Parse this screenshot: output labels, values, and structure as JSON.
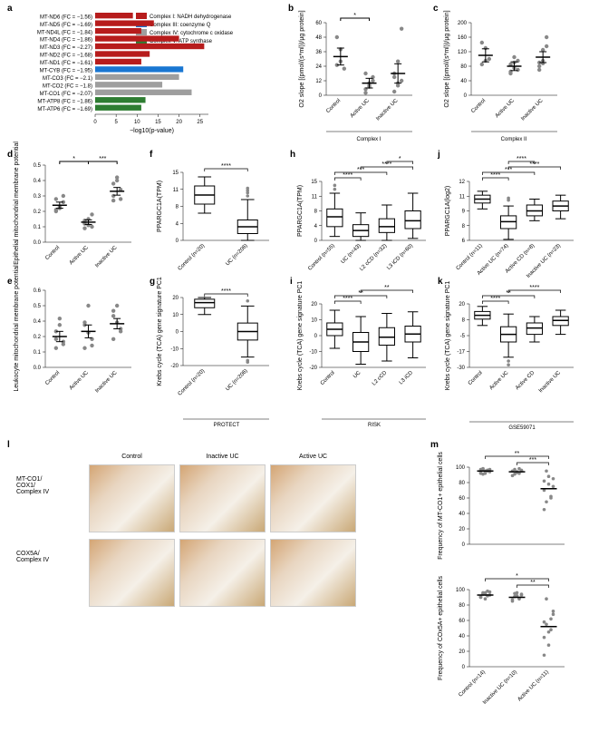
{
  "panelA": {
    "colors": {
      "I": "#b71c1c",
      "III": "#1976d2",
      "IV": "#9e9e9e",
      "V": "#2e7d32"
    },
    "legend": [
      {
        "label": "Complex I: NADH dehydrogenase",
        "color": "#b71c1c"
      },
      {
        "label": "Complex III: coenzyme Q",
        "color": "#1976d2"
      },
      {
        "label": "Complex IV: cytochrome c oxidase",
        "color": "#9e9e9e"
      },
      {
        "label": "Complex V: ATP synthase",
        "color": "#2e7d32"
      }
    ],
    "xlabel": "−log10(p-value)",
    "xmax": 27,
    "items": [
      {
        "name": "MT-ND6 (FC = −1.56)",
        "val": 9,
        "c": "I"
      },
      {
        "name": "MT-ND5 (FC = −1.69)",
        "val": 14,
        "c": "I"
      },
      {
        "name": "MT-ND4L (FC = −1.84)",
        "val": 11,
        "c": "I"
      },
      {
        "name": "MT-ND4 (FC = −1.86)",
        "val": 20,
        "c": "I"
      },
      {
        "name": "MT-ND3 (FC = −2.27)",
        "val": 26,
        "c": "I"
      },
      {
        "name": "MT-ND2 (FC = −1.68)",
        "val": 13,
        "c": "I"
      },
      {
        "name": "MT-ND1 (FC = −1.61)",
        "val": 11,
        "c": "I"
      },
      {
        "name": "MT-CYB (FC = −1.95)",
        "val": 21,
        "c": "III"
      },
      {
        "name": "MT-CO3 (FC = −2.1)",
        "val": 20,
        "c": "IV"
      },
      {
        "name": "MT-CO2 (FC = −1.8)",
        "val": 16,
        "c": "IV"
      },
      {
        "name": "MT-CO1 (FC = −2.07)",
        "val": 23,
        "c": "IV"
      },
      {
        "name": "MT-ATP8 (FC = −1.86)",
        "val": 12,
        "c": "V"
      },
      {
        "name": "MT-ATP6 (FC = −1.69)",
        "val": 11,
        "c": "V"
      }
    ]
  },
  "panelB": {
    "ylabel": "O2 slope [(pmol/(s*ml))/µg protein]",
    "ymax": 60,
    "title": "Complex I",
    "sig": "*",
    "groups": [
      {
        "label": "Control",
        "mean": 32,
        "sem": 7,
        "pts": [
          25,
          28,
          22,
          48,
          38
        ]
      },
      {
        "label": "Active UC",
        "mean": 10,
        "sem": 4,
        "pts": [
          5,
          8,
          15,
          2,
          7,
          12,
          18,
          10
        ]
      },
      {
        "label": "Inactive UC",
        "mean": 18,
        "sem": 8,
        "pts": [
          3,
          8,
          12,
          18,
          28,
          55,
          15,
          10
        ]
      }
    ]
  },
  "panelC": {
    "ylabel": "O2 slope [(pmol/(s*ml))/µg protein]",
    "ymax": 200,
    "title": "Complex II",
    "groups": [
      {
        "label": "Control",
        "mean": 110,
        "sem": 18,
        "pts": [
          145,
          130,
          100,
          85,
          95
        ]
      },
      {
        "label": "Active UC",
        "mean": 80,
        "sem": 12,
        "pts": [
          65,
          75,
          95,
          60,
          105,
          70,
          85,
          90
        ]
      },
      {
        "label": "Inactive UC",
        "mean": 105,
        "sem": 15,
        "pts": [
          70,
          95,
          135,
          80,
          125,
          160,
          90,
          88
        ]
      }
    ]
  },
  "panelD": {
    "ylabel": "Epithelial mitochondrial membrane potential",
    "ymax": 0.5,
    "sig": [
      "*",
      "***"
    ],
    "groups": [
      {
        "label": "Control",
        "mean": 0.24,
        "sem": 0.02,
        "pts": [
          0.21,
          0.23,
          0.26,
          0.28,
          0.22,
          0.3,
          0.2
        ]
      },
      {
        "label": "Active UC",
        "mean": 0.13,
        "sem": 0.015,
        "pts": [
          0.09,
          0.11,
          0.18,
          0.12,
          0.15,
          0.1,
          0.14
        ]
      },
      {
        "label": "Inactive UC",
        "mean": 0.33,
        "sem": 0.025,
        "pts": [
          0.27,
          0.42,
          0.28,
          0.3,
          0.4,
          0.34,
          0.38
        ]
      }
    ]
  },
  "panelE": {
    "ylabel": "Leukocyte mitochondrial membrane potential",
    "ymax": 0.6,
    "groups": [
      {
        "label": "Control",
        "mean": 0.24,
        "sem": 0.04,
        "pts": [
          0.15,
          0.33,
          0.2,
          0.28,
          0.38,
          0.18,
          0.22
        ]
      },
      {
        "label": "Active UC",
        "mean": 0.28,
        "sem": 0.05,
        "pts": [
          0.15,
          0.48,
          0.17,
          0.33,
          0.27,
          0.22,
          0.35
        ]
      },
      {
        "label": "Inactive UC",
        "mean": 0.34,
        "sem": 0.04,
        "pts": [
          0.22,
          0.48,
          0.28,
          0.4,
          0.35,
          0.3,
          0.44
        ]
      }
    ]
  },
  "panelF": {
    "ylabel": "PPARGC1A(TPM)",
    "title": "PROTECT",
    "ymin": 0,
    "ymax": 15,
    "sig": "****",
    "groups": [
      {
        "label": "Control (n=20)",
        "q1": 8,
        "med": 10,
        "q3": 12,
        "lo": 6,
        "hi": 14
      },
      {
        "label": "UC (n=206)",
        "q1": 1.5,
        "med": 3,
        "q3": 4.5,
        "lo": 0,
        "hi": 9,
        "out": [
          9.8,
          10.5,
          11,
          11.5
        ]
      }
    ]
  },
  "panelG": {
    "ylabel": "Krebs cycle (TCA) gene signature PC1",
    "ymin": -20,
    "ymax": 20,
    "sig": "****",
    "groups": [
      {
        "label": "Control (n=20)",
        "q1": 14,
        "med": 17,
        "q3": 19,
        "lo": 10,
        "hi": 20
      },
      {
        "label": "UC (n=206)",
        "q1": -5,
        "med": 0,
        "q3": 5,
        "lo": -15,
        "hi": 15,
        "out": [
          -18,
          -17,
          18
        ]
      }
    ]
  },
  "panelH": {
    "ylabel": "PPARGC1A(TPM)",
    "title": "RISK",
    "ymin": 0,
    "ymax": 15,
    "sigs": [
      [
        "Control",
        "UC",
        "****"
      ],
      [
        "Control",
        "L2 cCD",
        "***"
      ],
      [
        "UC",
        "L3 iCD",
        "****"
      ],
      [
        "L2 cCD",
        "L3 iCD",
        "*"
      ]
    ],
    "groups": [
      {
        "label": "Control (n=55)",
        "q1": 3.5,
        "med": 6,
        "q3": 8,
        "lo": 1,
        "hi": 12,
        "out": [
          13,
          14
        ]
      },
      {
        "label": "UC (n=43)",
        "q1": 1,
        "med": 2.5,
        "q3": 4,
        "lo": 0,
        "hi": 7
      },
      {
        "label": "L2 cCD (n=32)",
        "q1": 2,
        "med": 3.5,
        "q3": 5.5,
        "lo": 0,
        "hi": 9
      },
      {
        "label": "L3 iCD (n=60)",
        "q1": 3,
        "med": 5,
        "q3": 7.5,
        "lo": 0.5,
        "hi": 12
      }
    ]
  },
  "panelI": {
    "ylabel": "Krebs cycle (TCA) gene signature PC1",
    "ymin": -20,
    "ymax": 20,
    "sigs": [
      [
        "Control",
        "UC",
        "****"
      ],
      [
        "Control",
        "L2 cCD",
        "**"
      ],
      [
        "UC",
        "L3 iCD",
        "**"
      ]
    ],
    "groups": [
      {
        "label": "Control",
        "q1": 0,
        "med": 4,
        "q3": 8,
        "lo": -8,
        "hi": 16
      },
      {
        "label": "UC",
        "q1": -10,
        "med": -4,
        "q3": 2,
        "lo": -18,
        "hi": 12
      },
      {
        "label": "L2 cCD",
        "q1": -6,
        "med": -1,
        "q3": 5,
        "lo": -16,
        "hi": 14
      },
      {
        "label": "L3 iCD",
        "q1": -4,
        "med": 1,
        "q3": 6,
        "lo": -14,
        "hi": 15
      }
    ]
  },
  "panelJ": {
    "ylabel": "PPARGC1A(log2)",
    "title": "GSE59071",
    "ymin": 6,
    "ymax": 12,
    "sigs": [
      [
        "Control",
        "Active UC",
        "****"
      ],
      [
        "Control",
        "Active CD",
        "***"
      ],
      [
        "Active UC",
        "Inactive UC",
        "****"
      ],
      [
        "Active UC",
        "Active CD",
        "****"
      ]
    ],
    "groups": [
      {
        "label": "Control (n=11)",
        "q1": 9.8,
        "med": 10.2,
        "q3": 10.6,
        "lo": 9.2,
        "hi": 11
      },
      {
        "label": "Active UC (n=74)",
        "q1": 7.2,
        "med": 7.9,
        "q3": 8.5,
        "lo": 6.1,
        "hi": 9.5,
        "out": [
          10.1,
          10.3
        ]
      },
      {
        "label": "Active CD (n=8)",
        "q1": 8.5,
        "med": 9,
        "q3": 9.6,
        "lo": 8,
        "hi": 10.2
      },
      {
        "label": "Inactive UC (n=23)",
        "q1": 9,
        "med": 9.5,
        "q3": 10,
        "lo": 8.2,
        "hi": 10.6
      }
    ]
  },
  "panelK": {
    "ylabel": "Krebs cycle (TCA) gene signature PC1",
    "ymin": -30,
    "ymax": 20,
    "sigs": [
      [
        "Control",
        "Active UC",
        "****"
      ],
      [
        "Control",
        "Active CD",
        "**"
      ],
      [
        "Active UC",
        "Inactive UC",
        "****"
      ]
    ],
    "groups": [
      {
        "label": "Control",
        "q1": 8,
        "med": 11,
        "q3": 14,
        "lo": 3,
        "hi": 18
      },
      {
        "label": "Active UC",
        "q1": -10,
        "med": -4,
        "q3": 2,
        "lo": -22,
        "hi": 12,
        "out": [
          -28,
          -25
        ]
      },
      {
        "label": "Active CD",
        "q1": -4,
        "med": 1,
        "q3": 5,
        "lo": -10,
        "hi": 10
      },
      {
        "label": "Inactive UC",
        "q1": 3,
        "med": 7,
        "q3": 10,
        "lo": -4,
        "hi": 15
      }
    ]
  },
  "panelL": {
    "cols": [
      "Control",
      "Inactive UC",
      "Active UC"
    ],
    "rows": [
      "MT-CO1/COX1/Complex IV",
      "COX5A/Complex IV"
    ]
  },
  "panelM": {
    "top": {
      "ylabel": "Frequency of MT-CO1+ epithelial cells",
      "ymax": 100,
      "sigs": [
        "**",
        "***"
      ],
      "groups": [
        {
          "label": "Control (n=14)",
          "mean": 95,
          "pts": [
            92,
            98,
            94,
            96,
            97,
            93,
            91,
            95,
            96,
            94,
            97,
            98,
            92,
            95
          ]
        },
        {
          "label": "Inactive UC (n=10)",
          "mean": 94,
          "pts": [
            89,
            97,
            94,
            92,
            96,
            95,
            91,
            93,
            98,
            95
          ]
        },
        {
          "label": "Active UC (n=11)",
          "mean": 72,
          "pts": [
            45,
            95,
            78,
            62,
            85,
            70,
            55,
            88,
            60,
            75,
            82
          ]
        }
      ]
    },
    "bot": {
      "ylabel": "Frequency of COx5A+ epithelial cells",
      "ymax": 100,
      "sigs": [
        "*",
        "**"
      ],
      "groups": [
        {
          "label": "Control (n=14)",
          "mean": 93,
          "pts": [
            90,
            96,
            94,
            92,
            97,
            91,
            95,
            88,
            98,
            93,
            90,
            94,
            96,
            92
          ]
        },
        {
          "label": "Inactive UC (n=10)",
          "mean": 90,
          "pts": [
            85,
            95,
            92,
            88,
            94,
            87,
            91,
            96,
            89,
            93
          ]
        },
        {
          "label": "Active UC (n=11)",
          "mean": 52,
          "pts": [
            15,
            88,
            45,
            62,
            72,
            38,
            55,
            28,
            48,
            68,
            58
          ]
        }
      ]
    }
  }
}
